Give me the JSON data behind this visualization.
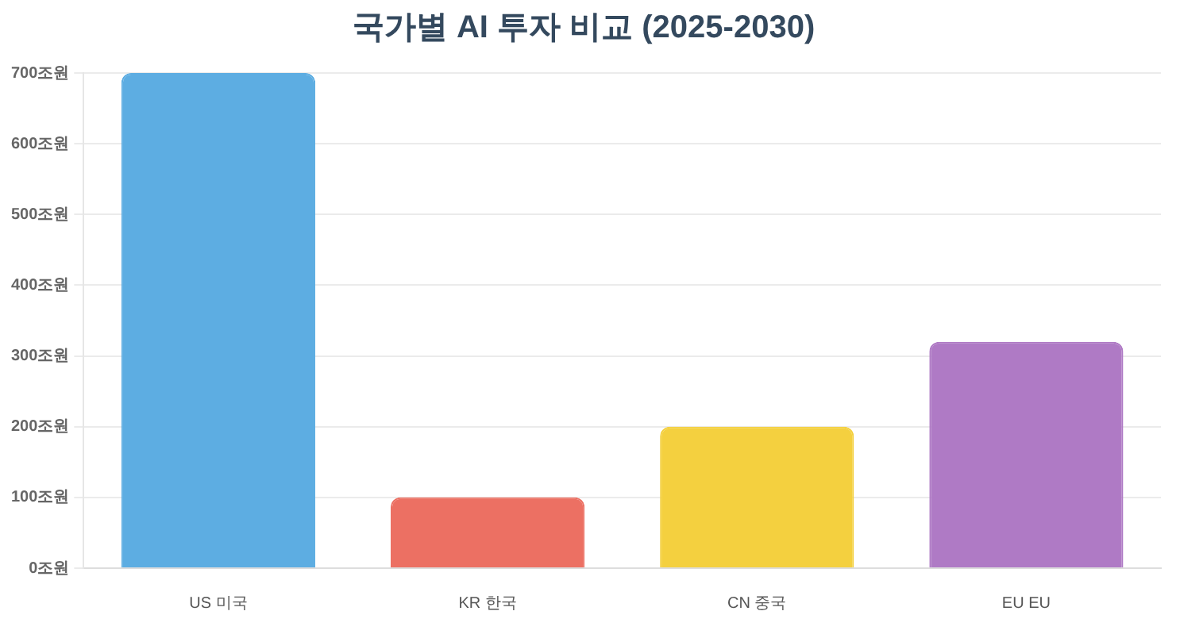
{
  "chart_data": {
    "type": "bar",
    "title": "국가별 AI 투자 비교 (2025-2030)",
    "categories": [
      "US 미국",
      "KR 한국",
      "CN 중국",
      "EU EU"
    ],
    "values": [
      700,
      100,
      200,
      320
    ],
    "colors": [
      "#5dade2",
      "#ec7063",
      "#f4d03f",
      "#af7ac5"
    ],
    "ylim": [
      0,
      700
    ],
    "yticks": [
      {
        "value": 0,
        "label": "0조원"
      },
      {
        "value": 100,
        "label": "100조원"
      },
      {
        "value": 200,
        "label": "200조원"
      },
      {
        "value": 300,
        "label": "300조원"
      },
      {
        "value": 400,
        "label": "400조원"
      },
      {
        "value": 500,
        "label": "500조원"
      },
      {
        "value": 600,
        "label": "600조원"
      },
      {
        "value": 700,
        "label": "700조원"
      }
    ],
    "grid": "y",
    "legend": false
  }
}
